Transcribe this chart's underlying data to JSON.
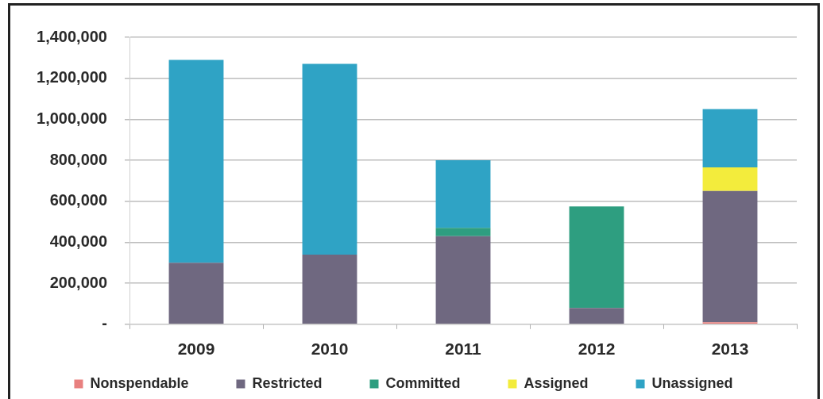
{
  "chart_data": {
    "type": "bar",
    "stacked": true,
    "categories": [
      "2009",
      "2010",
      "2011",
      "2012",
      "2013"
    ],
    "series": [
      {
        "name": "Nonspendable",
        "color": "#e8807f",
        "values": [
          0,
          0,
          0,
          0,
          10000
        ]
      },
      {
        "name": "Restricted",
        "color": "#6f6880",
        "values": [
          300000,
          340000,
          430000,
          80000,
          640000
        ]
      },
      {
        "name": "Committed",
        "color": "#2e9e80",
        "values": [
          0,
          0,
          40000,
          495000,
          0
        ]
      },
      {
        "name": "Assigned",
        "color": "#f3ec3c",
        "values": [
          0,
          0,
          0,
          0,
          115000
        ]
      },
      {
        "name": "Unassigned",
        "color": "#2fa3c5",
        "values": [
          990000,
          930000,
          330000,
          0,
          285000
        ]
      }
    ],
    "ylim": [
      0,
      1400000
    ],
    "yticks": [
      {
        "value": 0,
        "label": "-"
      },
      {
        "value": 200000,
        "label": "200,000"
      },
      {
        "value": 400000,
        "label": "400,000"
      },
      {
        "value": 600000,
        "label": "600,000"
      },
      {
        "value": 800000,
        "label": "800,000"
      },
      {
        "value": 1000000,
        "label": "1,000,000"
      },
      {
        "value": 1200000,
        "label": "1,200,000"
      },
      {
        "value": 1400000,
        "label": "1,400,000"
      }
    ],
    "grid": "y",
    "legend": "bottom"
  }
}
